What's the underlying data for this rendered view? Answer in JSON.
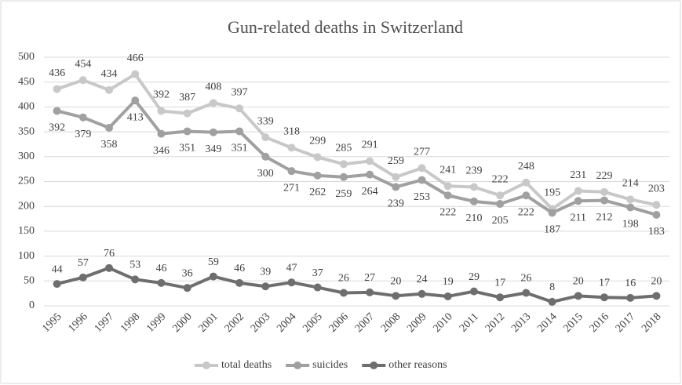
{
  "chart_data": {
    "type": "line",
    "title": "Gun-related deaths in Switzerland",
    "categories": [
      "1995",
      "1996",
      "1997",
      "1998",
      "1999",
      "2000",
      "2001",
      "2002",
      "2003",
      "2004",
      "2005",
      "2006",
      "2007",
      "2008",
      "2009",
      "2010",
      "2011",
      "2012",
      "2013",
      "2014",
      "2015",
      "2016",
      "2017",
      "2018"
    ],
    "series": [
      {
        "name": "total deaths",
        "color": "#c8c8c8",
        "values": [
          436,
          454,
          434,
          466,
          392,
          387,
          408,
          397,
          339,
          318,
          299,
          285,
          291,
          259,
          277,
          241,
          239,
          222,
          248,
          195,
          231,
          229,
          214,
          203
        ]
      },
      {
        "name": "suicides",
        "color": "#a0a0a0",
        "values": [
          392,
          379,
          358,
          413,
          346,
          351,
          349,
          351,
          300,
          271,
          262,
          259,
          264,
          239,
          253,
          222,
          210,
          205,
          222,
          187,
          211,
          212,
          198,
          183
        ]
      },
      {
        "name": "other reasons",
        "color": "#6e6e6e",
        "values": [
          44,
          57,
          76,
          53,
          46,
          36,
          59,
          46,
          39,
          47,
          37,
          26,
          27,
          20,
          24,
          19,
          29,
          17,
          26,
          8,
          20,
          17,
          16,
          20
        ]
      }
    ],
    "ylim": [
      0,
      500
    ],
    "yticks": [
      0,
      50,
      100,
      150,
      200,
      250,
      300,
      350,
      400,
      450,
      500
    ],
    "grid": true,
    "legend": "bottom"
  }
}
